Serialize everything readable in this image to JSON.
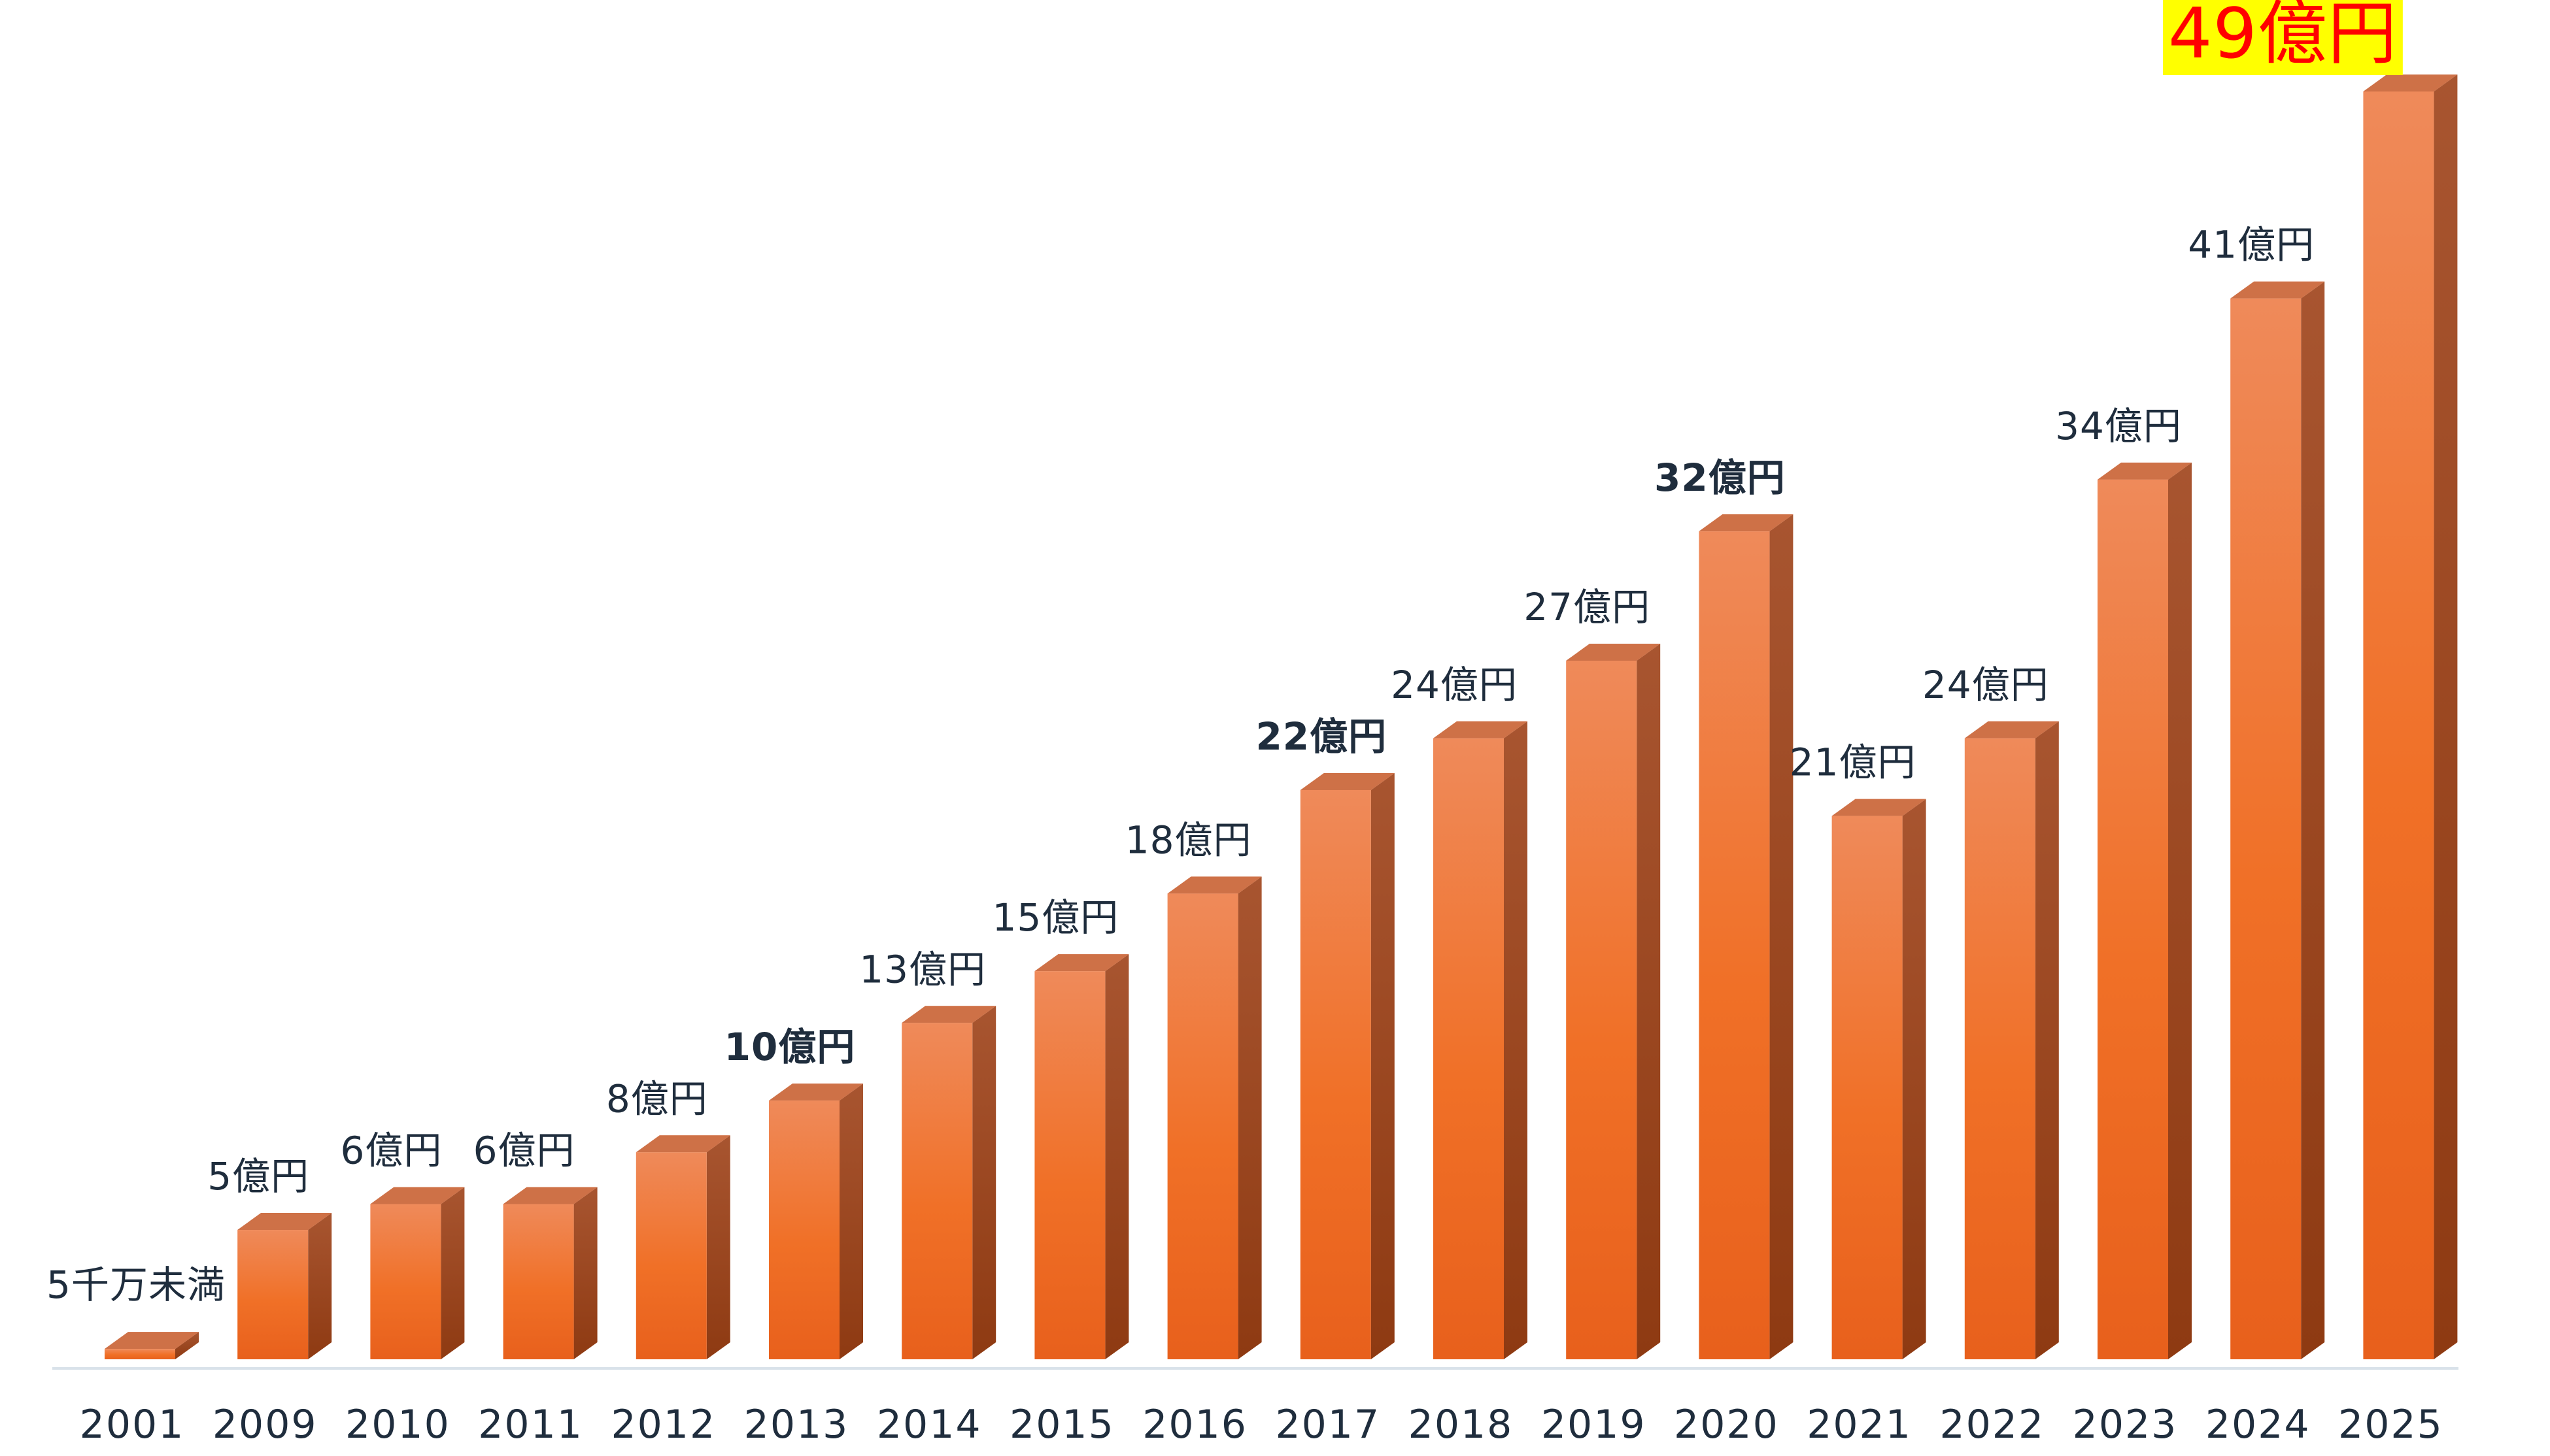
{
  "chart_data": {
    "type": "bar",
    "categories": [
      "2001",
      "2009",
      "2010",
      "2011",
      "2012",
      "2013",
      "2014",
      "2015",
      "2016",
      "2017",
      "2018",
      "2019",
      "2020",
      "2021",
      "2022",
      "2023",
      "2024",
      "2025"
    ],
    "values": [
      0.4,
      5,
      6,
      6,
      8,
      10,
      13,
      15,
      18,
      22,
      24,
      27,
      32,
      21,
      24,
      34,
      41,
      49
    ],
    "data_labels": [
      "5千万未満",
      "5億円",
      "6億円",
      "6億円",
      "8億円",
      "10億円",
      "13億円",
      "15億円",
      "18億円",
      "22億円",
      "24億円",
      "27億円",
      "32億円",
      "21億円",
      "24億円",
      "34億円",
      "41億円",
      "49億円"
    ],
    "bold_labels": [
      "2013",
      "2017",
      "2020"
    ],
    "highlighted_label": "2025",
    "highlight_background": "#ffff00",
    "highlight_text_color": "#ff0000",
    "bar_color_top": "#ee8656",
    "bar_color_front": "#f07a38",
    "bar_color_side": "#9c4420",
    "axis_color": "#d9e2ea",
    "label_color": "#1f2d3d",
    "three_d": true,
    "grid": false,
    "legend": "none",
    "ylim": [
      0,
      49
    ]
  }
}
